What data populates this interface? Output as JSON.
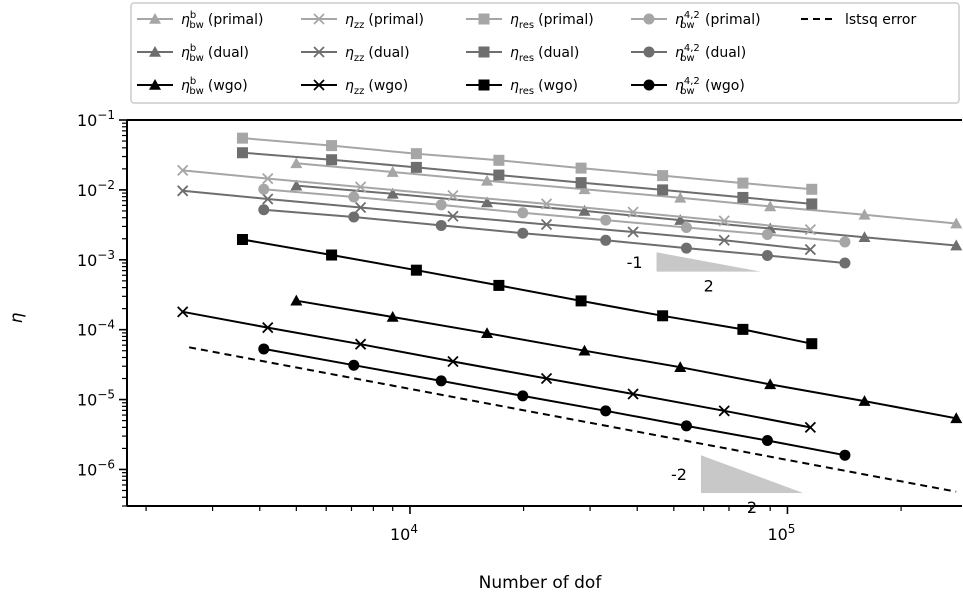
{
  "chart_data": {
    "type": "line",
    "xlabel": "Number of dof",
    "ylabel": "η",
    "xscale": "log",
    "yscale": "log",
    "xlim": [
      1780,
      290000
    ],
    "ylim": [
      3e-07,
      0.1
    ],
    "x_tick_labels": [
      {
        "value": 10000,
        "base": "10",
        "exp": "4"
      },
      {
        "value": 100000,
        "base": "10",
        "exp": "5"
      }
    ],
    "y_tick_labels": [
      {
        "value": 0.1,
        "base": "10",
        "exp": "−1"
      },
      {
        "value": 0.01,
        "base": "10",
        "exp": "−2"
      },
      {
        "value": 0.001,
        "base": "10",
        "exp": "−3"
      },
      {
        "value": 0.0001,
        "base": "10",
        "exp": "−4"
      },
      {
        "value": 1e-05,
        "base": "10",
        "exp": "−5"
      },
      {
        "value": 1e-06,
        "base": "10",
        "exp": "−6"
      }
    ],
    "legend_placement": "top",
    "series": [
      {
        "name": "η_bw^b (primal)",
        "main": "η",
        "sub": "bw",
        "sup": "b",
        "variant": "(primal)",
        "color": "#a6a6a6",
        "marker": "triangle",
        "x": [
          5000,
          9000,
          16000,
          29000,
          52000,
          90000,
          160000,
          280000
        ],
        "y": [
          0.024,
          0.018,
          0.0135,
          0.0102,
          0.0077,
          0.0058,
          0.0044,
          0.0033
        ]
      },
      {
        "name": "η_bw^b (dual)",
        "main": "η",
        "sub": "bw",
        "sup": "b",
        "variant": "(dual)",
        "color": "#6e6e6e",
        "marker": "triangle",
        "x": [
          5000,
          9000,
          16000,
          29000,
          52000,
          90000,
          160000,
          280000
        ],
        "y": [
          0.0115,
          0.0088,
          0.0066,
          0.005,
          0.0037,
          0.0028,
          0.0021,
          0.0016
        ]
      },
      {
        "name": "η_bw^b (wgo)",
        "main": "η",
        "sub": "bw",
        "sup": "b",
        "variant": "(wgo)",
        "color": "#000000",
        "marker": "triangle",
        "x": [
          5000,
          9000,
          16000,
          29000,
          52000,
          90000,
          160000,
          280000
        ],
        "y": [
          0.00026,
          0.000152,
          8.9e-05,
          5e-05,
          2.9e-05,
          1.65e-05,
          9.5e-06,
          5.4e-06
        ]
      },
      {
        "name": "η_zz (primal)",
        "main": "η",
        "sub": "zz",
        "sup": "",
        "variant": "(primal)",
        "color": "#a6a6a6",
        "marker": "x",
        "x": [
          2500,
          4200,
          7400,
          13000,
          23000,
          39000,
          68000,
          115000
        ],
        "y": [
          0.019,
          0.0145,
          0.011,
          0.0083,
          0.0063,
          0.0048,
          0.0036,
          0.0027
        ]
      },
      {
        "name": "η_zz (dual)",
        "main": "η",
        "sub": "zz",
        "sup": "",
        "variant": "(dual)",
        "color": "#6e6e6e",
        "marker": "x",
        "x": [
          2500,
          4200,
          7400,
          13000,
          23000,
          39000,
          68000,
          115000
        ],
        "y": [
          0.0097,
          0.0074,
          0.0056,
          0.0042,
          0.0032,
          0.0025,
          0.0019,
          0.0014
        ]
      },
      {
        "name": "η_zz (wgo)",
        "main": "η",
        "sub": "zz",
        "sup": "",
        "variant": "(wgo)",
        "color": "#000000",
        "marker": "x",
        "x": [
          2500,
          4200,
          7400,
          13000,
          23000,
          39000,
          68000,
          115000
        ],
        "y": [
          0.00018,
          0.000107,
          6.2e-05,
          3.5e-05,
          2e-05,
          1.2e-05,
          6.9e-06,
          4e-06
        ]
      },
      {
        "name": "η_res (primal)",
        "main": "η",
        "sub": "res",
        "sup": "",
        "variant": "(primal)",
        "color": "#a6a6a6",
        "marker": "square",
        "x": [
          3600,
          6200,
          10400,
          17200,
          28400,
          46700,
          76200,
          116000
        ],
        "y": [
          0.055,
          0.043,
          0.033,
          0.0265,
          0.0205,
          0.016,
          0.0125,
          0.0102
        ]
      },
      {
        "name": "η_res (dual)",
        "main": "η",
        "sub": "res",
        "sup": "",
        "variant": "(dual)",
        "color": "#6e6e6e",
        "marker": "square",
        "x": [
          3600,
          6200,
          10400,
          17200,
          28400,
          46700,
          76200,
          116000
        ],
        "y": [
          0.034,
          0.027,
          0.021,
          0.0163,
          0.0127,
          0.01,
          0.0078,
          0.0063
        ]
      },
      {
        "name": "η_res (wgo)",
        "main": "η",
        "sub": "res",
        "sup": "",
        "variant": "(wgo)",
        "color": "#000000",
        "marker": "square",
        "x": [
          3600,
          6200,
          10400,
          17200,
          28400,
          46700,
          76200,
          116000
        ],
        "y": [
          0.00195,
          0.00117,
          0.00071,
          0.00043,
          0.000258,
          0.000158,
          0.000101,
          6.3e-05
        ]
      },
      {
        "name": "η_bw^{4,2} (primal)",
        "main": "η",
        "sub": "bw",
        "sup": "4,2",
        "variant": "(primal)",
        "color": "#a6a6a6",
        "marker": "circle",
        "x": [
          4100,
          7100,
          12100,
          19900,
          33000,
          54000,
          88500,
          142000
        ],
        "y": [
          0.0102,
          0.0079,
          0.0061,
          0.0047,
          0.0037,
          0.0029,
          0.0023,
          0.0018
        ]
      },
      {
        "name": "η_bw^{4,2} (dual)",
        "main": "η",
        "sub": "bw",
        "sup": "4,2",
        "variant": "(dual)",
        "color": "#6e6e6e",
        "marker": "circle",
        "x": [
          4100,
          7100,
          12100,
          19900,
          33000,
          54000,
          88500,
          142000
        ],
        "y": [
          0.0052,
          0.0041,
          0.0031,
          0.0024,
          0.0019,
          0.00147,
          0.00115,
          0.0009
        ]
      },
      {
        "name": "η_bw^{4,2} (wgo)",
        "main": "η",
        "sub": "bw",
        "sup": "4,2",
        "variant": "(wgo)",
        "color": "#000000",
        "marker": "circle",
        "x": [
          4100,
          7100,
          12100,
          19900,
          33000,
          54000,
          88500,
          142000
        ],
        "y": [
          5.3e-05,
          3.1e-05,
          1.85e-05,
          1.13e-05,
          6.9e-06,
          4.2e-06,
          2.6e-06,
          1.6e-06
        ]
      },
      {
        "name": "lstsq error",
        "main": "lstsq error",
        "sub": "",
        "sup": "",
        "variant": "",
        "color": "#000000",
        "marker": "none",
        "dashed": true,
        "x": [
          2600,
          280000
        ],
        "y": [
          5.6e-05,
          4.8e-07
        ]
      }
    ],
    "slope_triangles": [
      {
        "x0": 45000,
        "x1": 85000,
        "y0": 0.00128,
        "slope": -1,
        "color": "#c8c8c8",
        "rise_label": "-1",
        "run_label": "2"
      },
      {
        "x0": 59000,
        "x1": 110000,
        "y0": 1.6e-06,
        "slope": -2,
        "color": "#c8c8c8",
        "rise_label": "-2",
        "run_label": "2"
      }
    ]
  }
}
